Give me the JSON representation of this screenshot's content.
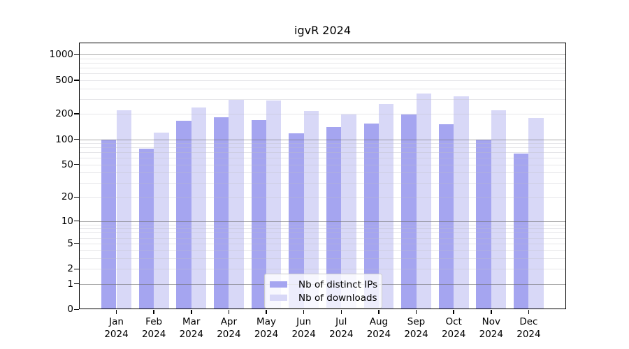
{
  "title": "igvR 2024",
  "colors": {
    "ips_bar": "#a5a5f0",
    "downloads_bar": "#d8d8f7",
    "grid_major": "#b0b0b0",
    "grid_minor": "#e9e9e9",
    "axis": "#000000",
    "legend_border": "#cccccc"
  },
  "legend": {
    "item1": "Nb of distinct IPs",
    "item2": "Nb of downloads"
  },
  "chart_data": {
    "type": "bar",
    "title": "igvR 2024",
    "categories": [
      "Jan",
      "Feb",
      "Mar",
      "Apr",
      "May",
      "Jun",
      "Jul",
      "Aug",
      "Sep",
      "Oct",
      "Nov",
      "Dec"
    ],
    "category_year": "2024",
    "series": [
      {
        "name": "Nb of distinct IPs",
        "values": [
          100,
          77,
          165,
          182,
          170,
          117,
          140,
          155,
          197,
          150,
          100,
          68
        ]
      },
      {
        "name": "Nb of downloads",
        "values": [
          220,
          120,
          240,
          296,
          290,
          215,
          197,
          260,
          345,
          325,
          220,
          180
        ]
      }
    ],
    "yticks": [
      0,
      1,
      2,
      5,
      10,
      20,
      50,
      100,
      200,
      500,
      1000
    ],
    "minor_grid_values": [
      2,
      3,
      4,
      5,
      6,
      7,
      8,
      9,
      20,
      30,
      40,
      50,
      60,
      70,
      80,
      90,
      200,
      300,
      400,
      500,
      600,
      700,
      800,
      900
    ],
    "major_grid_values": [
      1,
      10,
      100,
      1000
    ],
    "yscale": "log1p",
    "ylim": [
      0,
      1400
    ],
    "xlabel": "",
    "ylabel": "",
    "grid": true,
    "legend_position": "lower-center"
  }
}
